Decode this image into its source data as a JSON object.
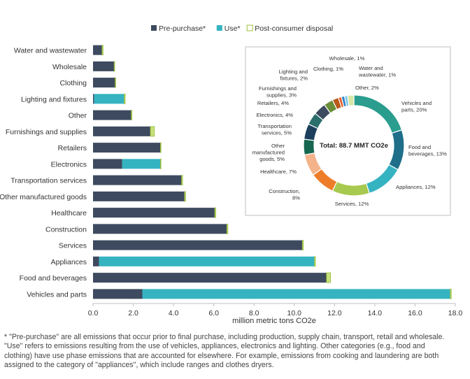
{
  "chart_data": [
    {
      "type": "bar",
      "orientation": "horizontal",
      "stacked": true,
      "categories": [
        "Water and wastewater",
        "Wholesale",
        "Clothing",
        "Lighting and fixtures",
        "Other",
        "Furnishings and supplies",
        "Retailers",
        "Electronics",
        "Transportation services",
        "Other manufactured goods",
        "Healthcare",
        "Construction",
        "Services",
        "Appliances",
        "Food and beverages",
        "Vehicles and parts"
      ],
      "series": [
        {
          "name": "Pre-purchase*",
          "color": "#3d4a5f",
          "values": [
            0.45,
            1.05,
            1.1,
            0.05,
            1.9,
            2.85,
            3.35,
            1.45,
            4.4,
            4.55,
            6.05,
            6.65,
            10.4,
            0.3,
            11.6,
            2.45
          ]
        },
        {
          "name": "Use*",
          "color": "#35b3c1",
          "values": [
            0,
            0,
            0,
            1.5,
            0,
            0,
            0,
            1.9,
            0,
            0,
            0,
            0,
            0,
            10.7,
            0,
            15.3
          ]
        },
        {
          "name": "Post-consumer disposal",
          "color": "#c7e07a",
          "values": [
            0.05,
            0.02,
            0.02,
            0.05,
            0.03,
            0.2,
            0.02,
            0.02,
            0.05,
            0.05,
            0.05,
            0.05,
            0.05,
            0.05,
            0.2,
            0.05
          ]
        }
      ],
      "x_ticks": [
        "0.0",
        "2.0",
        "4.0",
        "6.0",
        "8.0",
        "10.0",
        "12.0",
        "14.0",
        "16.0",
        "18.0"
      ],
      "xlim": [
        0,
        18
      ],
      "xlabel": "million metric tons CO2e",
      "legend": "top",
      "grid": false
    },
    {
      "type": "pie",
      "donut": true,
      "center_label": "Total: 88.7 MMT CO2e",
      "slices": [
        {
          "label": "Vehicles and parts, 20%",
          "value": 20,
          "color": "#2a9d8f"
        },
        {
          "label": "Food and beverages, 13%",
          "value": 13,
          "color": "#1f6f8b"
        },
        {
          "label": "Appliances, 12%",
          "value": 12,
          "color": "#35b3c1"
        },
        {
          "label": "Services, 12%",
          "value": 12,
          "color": "#a8c94f"
        },
        {
          "label": "Construction, 8%",
          "value": 8,
          "color": "#ee7d2a"
        },
        {
          "label": "Healthcare, 7%",
          "value": 7,
          "color": "#f4b38a"
        },
        {
          "label": "Other manufactured goods, 5%",
          "value": 5,
          "color": "#17664f"
        },
        {
          "label": "Transportation services, 5%",
          "value": 5,
          "color": "#1d3f5c"
        },
        {
          "label": "Electronics, 4%",
          "value": 4,
          "color": "#2b6e6e"
        },
        {
          "label": "Retailers, 4%",
          "value": 4,
          "color": "#3d4a5f"
        },
        {
          "label": "Furnishings and supplies, 3%",
          "value": 3,
          "color": "#6b8e3a"
        },
        {
          "label": "Lighting and fixtures, 2%",
          "value": 2,
          "color": "#b85a1c"
        },
        {
          "label": "Clothing, 1%",
          "value": 1,
          "color": "#e8622a"
        },
        {
          "label": "Wholesale, 1%",
          "value": 1,
          "color": "#2f80c8"
        },
        {
          "label": "Water and wastewater, 1%",
          "value": 1,
          "color": "#80c7e6"
        },
        {
          "label": "Other, 2%",
          "value": 2,
          "color": "#d6e7a6"
        }
      ]
    }
  ],
  "footnote": "* \"Pre-purchase\" are all emissions that occur prior to final purchase, including production, supply chain, transport, retail and wholesale. \"Use\" refers to emissions resulting from the use of vehicles, appliances, electronics and lighting. Other categories (e.g., food and clothing) have use phase emissions that are accounted for elsewhere. For example, emissions from cooking and laundering are both assigned to the category of \"appliances\", which include ranges and clothes dryers."
}
